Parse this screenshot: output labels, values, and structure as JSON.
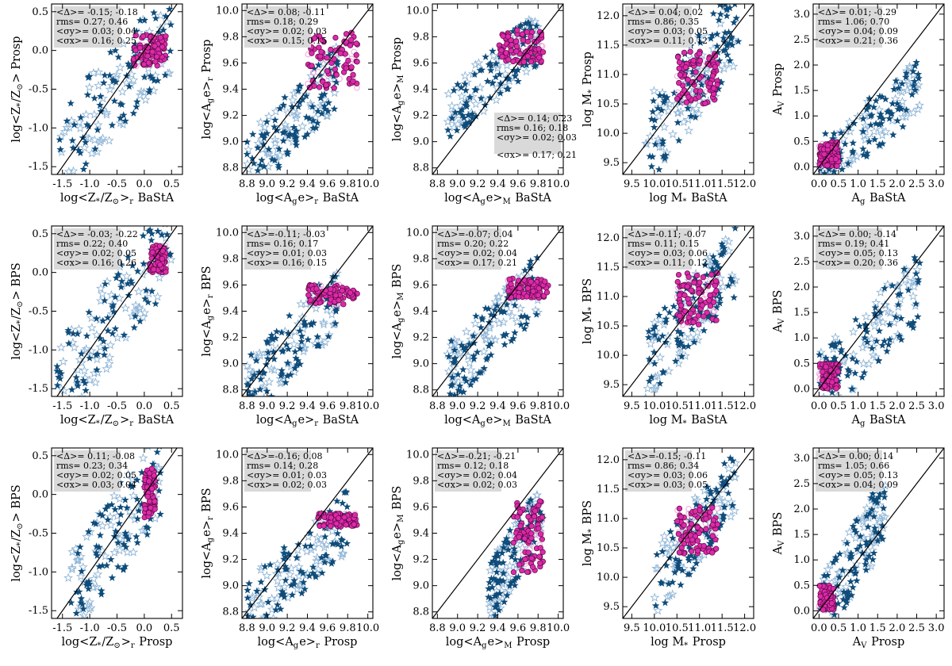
{
  "figure": {
    "description_labels": "5x3 grid of scatter comparisons between BaStA, Prospector and BPS fits",
    "colors": {
      "pink_filled": "#dd2aa9",
      "pink_open": "#f2a6dc",
      "star_dark": "#0f4c7a",
      "star_light": "#8fb5d6",
      "box": "#d9d9d9",
      "one_to_one": "#000000"
    }
  },
  "chart_data": [
    {
      "type": "scatter",
      "id": "r0c0",
      "xlabel": "log<Z*/Z⊙>r BaStA",
      "ylabel": "log<Z*/Z⊙> Prosp",
      "xticks": [
        "-1.5",
        "-1.0",
        "-0.5",
        "0.0",
        "0.5"
      ],
      "yticks": [
        "-1.5",
        "-1.0",
        "-0.5",
        "0.0",
        "0.5"
      ],
      "xlim": [
        -1.7,
        0.7
      ],
      "ylim": [
        -1.6,
        0.6
      ],
      "stats_position": "top-left",
      "stats": [
        "<Δ>= -0.15;  -0.18",
        "rms=  0.27;   0.46",
        "<σy>= 0.03; 0.04",
        "<σx>= 0.16; 0.25"
      ],
      "seed": 11,
      "cluster": {
        "x": [
          -0.2,
          0.4
        ],
        "y": [
          -0.2,
          0.2
        ]
      },
      "spread": {
        "x": [
          -1.6,
          0.5
        ],
        "y": [
          -1.4,
          0.3
        ]
      }
    },
    {
      "type": "scatter",
      "id": "r0c1",
      "xlabel": "log<Age>r BaStA",
      "ylabel": "log<Age>r Prosp",
      "xticks": [
        "8.8",
        "9.0",
        "9.2",
        "9.4",
        "9.6",
        "9.8",
        "10.0"
      ],
      "yticks": [
        "8.8",
        "9.0",
        "9.2",
        "9.4",
        "9.6",
        "9.8",
        "10.0"
      ],
      "xlim": [
        8.75,
        10.05
      ],
      "ylim": [
        8.75,
        10.05
      ],
      "stats_position": "top-left",
      "stats": [
        "<Δ>= 0.08;  -0.11",
        "rms=  0.18;  0.29",
        "<σy>= 0.02; 0.03",
        "<σx>= 0.15; 0.15"
      ],
      "seed": 12,
      "cluster": {
        "x": [
          9.4,
          9.9
        ],
        "y": [
          9.4,
          9.85
        ]
      },
      "spread": {
        "x": [
          8.8,
          9.7
        ],
        "y": [
          8.8,
          9.5
        ]
      }
    },
    {
      "type": "scatter",
      "id": "r0c2",
      "xlabel": "log<Age>M BaStA",
      "ylabel": "log<Age>M Prosp",
      "xticks": [
        "8.8",
        "9.0",
        "9.2",
        "9.4",
        "9.6",
        "9.8",
        "10.0"
      ],
      "yticks": [
        "8.8",
        "9.0",
        "9.2",
        "9.4",
        "9.6",
        "9.8",
        "10.0"
      ],
      "xlim": [
        8.75,
        10.05
      ],
      "ylim": [
        8.75,
        10.05
      ],
      "stats_position": "bottom-right",
      "stats": [
        "<Δ>= 0.14;  0.23",
        "rms=  0.16;  0.18",
        "<σy>= 0.02; 0.03",
        "<σx>= 0.17; 0.21"
      ],
      "seed": 13,
      "cluster": {
        "x": [
          9.4,
          9.85
        ],
        "y": [
          9.6,
          9.85
        ]
      },
      "spread": {
        "x": [
          8.9,
          9.8
        ],
        "y": [
          9.2,
          9.8
        ]
      }
    },
    {
      "type": "scatter",
      "id": "r0c3",
      "xlabel": "log M* BaStA",
      "ylabel": "log M* Prosp",
      "xticks": [
        "9.5",
        "10.0",
        "10.5",
        "11.0",
        "11.5",
        "12.0"
      ],
      "yticks": [
        "9.5",
        "10.0",
        "10.5",
        "11.0",
        "11.5",
        "12.0"
      ],
      "xlim": [
        9.3,
        12.2
      ],
      "ylim": [
        9.3,
        12.2
      ],
      "stats_position": "top-left",
      "stats": [
        "<Δ>= 0.04;  0.02",
        "rms=  0.86;  0.35",
        "<σy>= 0.03; 0.05",
        "<σx>= 0.11; 0.12"
      ],
      "seed": 14,
      "cluster": {
        "x": [
          10.5,
          11.4
        ],
        "y": [
          10.5,
          11.4
        ]
      },
      "spread": {
        "x": [
          9.8,
          11.9
        ],
        "y": [
          9.8,
          11.9
        ]
      }
    },
    {
      "type": "scatter",
      "id": "r0c4",
      "xlabel": "Ag BaStA",
      "ylabel": "AV Prosp",
      "xticks": [
        "0.0",
        "0.5",
        "1.0",
        "1.5",
        "2.0",
        "2.5",
        "3.0"
      ],
      "yticks": [
        "0.0",
        "0.5",
        "1.0",
        "1.5",
        "2.0",
        "2.5",
        "3.0"
      ],
      "xlim": [
        -0.15,
        3.2
      ],
      "ylim": [
        -0.15,
        3.2
      ],
      "stats_position": "top-left",
      "stats": [
        "<Δ>= 0.01;  -0.29",
        "rms=  1.06;  0.70",
        "<σy>= 0.04; 0.09",
        "<σx>= 0.21; 0.36"
      ],
      "seed": 15,
      "cluster": {
        "x": [
          0.0,
          0.5
        ],
        "y": [
          0.0,
          0.5
        ]
      },
      "spread": {
        "x": [
          0.0,
          2.6
        ],
        "y": [
          0.0,
          1.6
        ]
      }
    },
    {
      "type": "scatter",
      "id": "r1c0",
      "xlabel": "log<Z*/Z⊙>r BaStA",
      "ylabel": "log<Z*/Z⊙> BPS",
      "xticks": [
        "-1.5",
        "-1.0",
        "-0.5",
        "0.0",
        "0.5"
      ],
      "yticks": [
        "-1.5",
        "-1.0",
        "-0.5",
        "0.0",
        "0.5"
      ],
      "xlim": [
        -1.7,
        0.7
      ],
      "ylim": [
        -1.6,
        0.6
      ],
      "stats_position": "top-left",
      "stats": [
        "<Δ>= -0.03;  -0.22",
        "rms=  0.22;  0.40",
        "<σy>= 0.02; 0.05",
        "<σx>= 0.16; 0.26"
      ],
      "seed": 21,
      "cluster": {
        "x": [
          0.1,
          0.4
        ],
        "y": [
          0.0,
          0.35
        ]
      },
      "spread": {
        "x": [
          -1.6,
          0.5
        ],
        "y": [
          -1.4,
          0.3
        ]
      }
    },
    {
      "type": "scatter",
      "id": "r1c1",
      "xlabel": "log<Age>r BaStA",
      "ylabel": "log<Age>r BPS",
      "xticks": [
        "8.8",
        "9.0",
        "9.2",
        "9.4",
        "9.6",
        "9.8",
        "10.0"
      ],
      "yticks": [
        "8.8",
        "9.0",
        "9.2",
        "9.4",
        "9.6",
        "9.8",
        "10.0"
      ],
      "xlim": [
        8.75,
        10.05
      ],
      "ylim": [
        8.75,
        10.05
      ],
      "stats_position": "top-left",
      "stats": [
        "<Δ>=-0.11;  -0.03",
        "rms=  0.16;  0.17",
        "<σy>= 0.01; 0.03",
        "<σx>= 0.16; 0.15"
      ],
      "seed": 22,
      "cluster": {
        "x": [
          9.4,
          9.9
        ],
        "y": [
          9.45,
          9.6
        ]
      },
      "spread": {
        "x": [
          8.8,
          9.7
        ],
        "y": [
          8.8,
          9.5
        ]
      }
    },
    {
      "type": "scatter",
      "id": "r1c2",
      "xlabel": "log<Age>M BaStA",
      "ylabel": "log<Age>M BPS",
      "xticks": [
        "8.8",
        "9.0",
        "9.2",
        "9.4",
        "9.6",
        "9.8",
        "10.0"
      ],
      "yticks": [
        "8.8",
        "9.0",
        "9.2",
        "9.4",
        "9.6",
        "9.8",
        "10.0"
      ],
      "xlim": [
        8.75,
        10.05
      ],
      "ylim": [
        8.75,
        10.05
      ],
      "stats_position": "top-left",
      "stats": [
        "<Δ>=-0.07;  0.04",
        "rms=  0.20;  0.22",
        "<σy>= 0.02; 0.04",
        "<σx>= 0.17; 0.21"
      ],
      "seed": 23,
      "cluster": {
        "x": [
          9.5,
          9.9
        ],
        "y": [
          9.5,
          9.65
        ]
      },
      "spread": {
        "x": [
          8.9,
          9.8
        ],
        "y": [
          8.9,
          9.6
        ]
      }
    },
    {
      "type": "scatter",
      "id": "r1c3",
      "xlabel": "log M* BaStA",
      "ylabel": "log M* BPS",
      "xticks": [
        "9.5",
        "10.0",
        "10.5",
        "11.0",
        "11.5",
        "12.0"
      ],
      "yticks": [
        "9.5",
        "10.0",
        "10.5",
        "11.0",
        "11.5",
        "12.0"
      ],
      "xlim": [
        9.3,
        12.2
      ],
      "ylim": [
        9.3,
        12.2
      ],
      "stats_position": "top-left",
      "stats": [
        "<Δ>=-0.11;  -0.07",
        "rms=  0.11;  0.15",
        "<σy>= 0.03; 0.06",
        "<σx>= 0.11; 0.12"
      ],
      "seed": 24,
      "cluster": {
        "x": [
          10.5,
          11.4
        ],
        "y": [
          10.5,
          11.4
        ]
      },
      "spread": {
        "x": [
          9.8,
          11.8
        ],
        "y": [
          9.8,
          11.6
        ]
      }
    },
    {
      "type": "scatter",
      "id": "r1c4",
      "xlabel": "Ag BaStA",
      "ylabel": "AV BPS",
      "xticks": [
        "0.0",
        "0.5",
        "1.0",
        "1.5",
        "2.0",
        "2.5",
        "3.0"
      ],
      "yticks": [
        "0.0",
        "0.5",
        "1.0",
        "1.5",
        "2.0",
        "2.5",
        "3.0"
      ],
      "xlim": [
        -0.15,
        3.2
      ],
      "ylim": [
        -0.15,
        3.2
      ],
      "stats_position": "top-left",
      "stats": [
        "<Δ>= 0.00;  -0.14",
        "rms=  0.19;  0.41",
        "<σy>= 0.05; 0.13",
        "<σx>= 0.20; 0.36"
      ],
      "seed": 25,
      "cluster": {
        "x": [
          0.0,
          0.5
        ],
        "y": [
          0.0,
          0.5
        ]
      },
      "spread": {
        "x": [
          0.0,
          2.6
        ],
        "y": [
          0.0,
          2.0
        ]
      }
    },
    {
      "type": "scatter",
      "id": "r2c0",
      "xlabel": "log<Z*/Z⊙>r Prosp",
      "ylabel": "log<Z*/Z⊙> BPS",
      "xticks": [
        "-1.5",
        "-1.0",
        "-0.5",
        "0.0",
        "0.5"
      ],
      "yticks": [
        "-1.5",
        "-1.0",
        "-0.5",
        "0.0",
        "0.5"
      ],
      "xlim": [
        -1.7,
        0.7
      ],
      "ylim": [
        -1.6,
        0.6
      ],
      "stats_position": "top-left",
      "stats": [
        "<Δ>= 0.11;  -0.08",
        "rms=  0.23;  0.34",
        "<σy>= 0.02; 0.05",
        "<σx>= 0.03; 0.04"
      ],
      "seed": 31,
      "cluster": {
        "x": [
          0.0,
          0.2
        ],
        "y": [
          -0.3,
          0.35
        ]
      },
      "spread": {
        "x": [
          -1.4,
          0.3
        ],
        "y": [
          -1.4,
          0.3
        ]
      }
    },
    {
      "type": "scatter",
      "id": "r2c1",
      "xlabel": "log<Age>r Prosp",
      "ylabel": "log<Age>r BPS",
      "xticks": [
        "8.8",
        "9.0",
        "9.2",
        "9.4",
        "9.6",
        "9.8",
        "10.0"
      ],
      "yticks": [
        "8.8",
        "9.0",
        "9.2",
        "9.4",
        "9.6",
        "9.8",
        "10.0"
      ],
      "xlim": [
        8.75,
        10.05
      ],
      "ylim": [
        8.75,
        10.05
      ],
      "stats_position": "top-left",
      "stats": [
        "<Δ>=-0.16;  0.08",
        "rms=  0.14;  0.28",
        "<σy>= 0.01; 0.03",
        "<σx>= 0.02; 0.03"
      ],
      "seed": 32,
      "cluster": {
        "x": [
          9.5,
          9.9
        ],
        "y": [
          9.45,
          9.55
        ]
      },
      "spread": {
        "x": [
          8.8,
          9.8
        ],
        "y": [
          8.8,
          9.5
        ]
      }
    },
    {
      "type": "scatter",
      "id": "r2c2",
      "xlabel": "log<Age>M Prosp",
      "ylabel": "log<Age>M BPS",
      "xticks": [
        "8.8",
        "9.0",
        "9.2",
        "9.4",
        "9.6",
        "9.8",
        "10.0"
      ],
      "yticks": [
        "8.8",
        "9.0",
        "9.2",
        "9.4",
        "9.6",
        "9.8",
        "10.0"
      ],
      "xlim": [
        8.75,
        10.05
      ],
      "ylim": [
        8.75,
        10.05
      ],
      "stats_position": "top-left",
      "stats": [
        "<Δ>=-0.21;  -0.21",
        "rms=  0.12;  0.18",
        "<σy>= 0.02; 0.04",
        "<σx>= 0.02; 0.03"
      ],
      "seed": 33,
      "cluster": {
        "x": [
          9.55,
          9.85
        ],
        "y": [
          9.1,
          9.65
        ]
      },
      "spread": {
        "x": [
          9.3,
          9.85
        ],
        "y": [
          8.9,
          9.6
        ]
      }
    },
    {
      "type": "scatter",
      "id": "r2c3",
      "xlabel": "log M* Prosp",
      "ylabel": "log M* BPS",
      "xticks": [
        "9.5",
        "10.0",
        "10.5",
        "11.0",
        "11.5",
        "12.0"
      ],
      "yticks": [
        "9.5",
        "10.0",
        "10.5",
        "11.0",
        "11.5",
        "12.0"
      ],
      "xlim": [
        9.3,
        12.2
      ],
      "ylim": [
        9.3,
        12.2
      ],
      "stats_position": "top-left",
      "stats": [
        "<Δ>=-0.15;  -0.11",
        "rms=  0.86;  0.34",
        "<σy>= 0.03; 0.06",
        "<σx>= 0.03; 0.05"
      ],
      "seed": 34,
      "cluster": {
        "x": [
          10.5,
          11.4
        ],
        "y": [
          10.4,
          11.2
        ]
      },
      "spread": {
        "x": [
          10.0,
          11.8
        ],
        "y": [
          9.9,
          11.6
        ]
      }
    },
    {
      "type": "scatter",
      "id": "r2c4",
      "xlabel": "AV Prosp",
      "ylabel": "AV BPS",
      "xticks": [
        "0.0",
        "0.5",
        "1.0",
        "1.5",
        "2.0",
        "2.5",
        "3.0"
      ],
      "yticks": [
        "0.0",
        "0.5",
        "1.0",
        "1.5",
        "2.0",
        "2.5",
        "3.0"
      ],
      "xlim": [
        -0.15,
        3.2
      ],
      "ylim": [
        -0.15,
        3.2
      ],
      "stats_position": "top-left",
      "stats": [
        "<Δ>= 0.00;  0.14",
        "rms=  1.05;  0.66",
        "<σy>= 0.05; 0.13",
        "<σx>= 0.04; 0.09"
      ],
      "seed": 35,
      "cluster": {
        "x": [
          0.0,
          0.4
        ],
        "y": [
          0.0,
          0.5
        ]
      },
      "spread": {
        "x": [
          0.0,
          1.7
        ],
        "y": [
          0.0,
          2.0
        ]
      }
    }
  ]
}
